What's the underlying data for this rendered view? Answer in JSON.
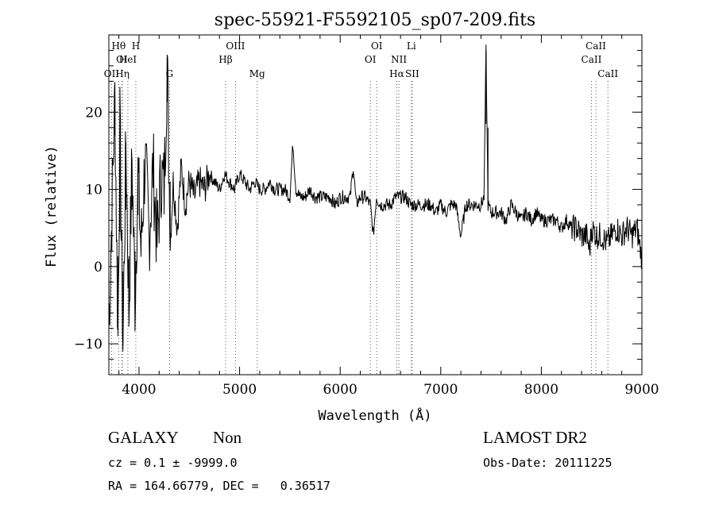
{
  "chart_data": {
    "type": "line",
    "title": "spec-55921-F5592105_sp07-209.fits",
    "xlabel": "Wavelength (Å)",
    "ylabel": "Flux (relative)",
    "xlim": [
      3700,
      9000
    ],
    "ylim": [
      -14,
      30
    ],
    "x_ticks": [
      4000,
      5000,
      6000,
      7000,
      8000,
      9000
    ],
    "y_ticks": [
      -10,
      0,
      10,
      20
    ],
    "grid": false,
    "series": [
      {
        "x": [
          3700,
          3760,
          3790,
          3810,
          3840,
          3870,
          3900,
          3930,
          3960,
          3990,
          4020,
          4060,
          4100,
          4140,
          4180,
          4220,
          4250,
          4280,
          4310,
          4340,
          4380,
          4420,
          4460,
          4500,
          4550,
          4600,
          4650,
          4700,
          4750,
          4800,
          4850,
          4900,
          4950,
          5000,
          5050,
          5100,
          5150,
          5200,
          5250,
          5300,
          5350,
          5400,
          5450,
          5500,
          5530,
          5560,
          5600,
          5650,
          5700,
          5750,
          5800,
          5850,
          5900,
          5950,
          6000,
          6050,
          6100,
          6130,
          6160,
          6200,
          6250,
          6300,
          6330,
          6360,
          6400,
          6450,
          6500,
          6550,
          6600,
          6650,
          6700,
          6750,
          6800,
          6850,
          6900,
          6950,
          7000,
          7050,
          7100,
          7150,
          7200,
          7250,
          7300,
          7350,
          7400,
          7430,
          7450,
          7470,
          7500,
          7550,
          7600,
          7650,
          7700,
          7750,
          7800,
          7850,
          7900,
          7950,
          8000,
          8050,
          8100,
          8150,
          8200,
          8250,
          8300,
          8350,
          8400,
          8450,
          8480,
          8500,
          8550,
          8600,
          8650,
          8700,
          8750,
          8800,
          8850,
          8900,
          8950,
          9000
        ],
        "y": [
          -8,
          22,
          -9,
          18,
          -10,
          16,
          -6,
          14,
          -4,
          12,
          2,
          14,
          4,
          13,
          3,
          12,
          10,
          27,
          3,
          11,
          5,
          13,
          8,
          11,
          9,
          11,
          10,
          12,
          11,
          10,
          12,
          11,
          10,
          12,
          11,
          10,
          11,
          10,
          10,
          11,
          10,
          10,
          10,
          9,
          16,
          10,
          9,
          9,
          10,
          9,
          9,
          9,
          9,
          8,
          9,
          9,
          9,
          13,
          8,
          9,
          9,
          8,
          4,
          9,
          8,
          8,
          8,
          9,
          9,
          9,
          8,
          8,
          8,
          8,
          8,
          7,
          8,
          7,
          8,
          8,
          4,
          8,
          8,
          8,
          8,
          9,
          28,
          8,
          7,
          7,
          7,
          6,
          8,
          7,
          6,
          7,
          6,
          7,
          6,
          6,
          6,
          6,
          5,
          6,
          5,
          5,
          4,
          4,
          2,
          5,
          4,
          4,
          3,
          4,
          5,
          4,
          5,
          4,
          5,
          1
        ]
      }
    ],
    "lines": [
      {
        "name": "Hθ",
        "x": 3798,
        "row": 1
      },
      {
        "name": "OI",
        "x": 3830,
        "row": 2
      },
      {
        "name": "HeI",
        "x": 3889,
        "row": 2
      },
      {
        "name": "OII",
        "x": 3727,
        "row": 3
      },
      {
        "name": "Hη",
        "x": 3835,
        "row": 3
      },
      {
        "name": "H",
        "x": 3968,
        "row": 1
      },
      {
        "name": "G",
        "x": 4304,
        "row": 3
      },
      {
        "name": "OIII",
        "x": 4959,
        "row": 1
      },
      {
        "name": "Hβ",
        "x": 4861,
        "row": 2
      },
      {
        "name": "Mg",
        "x": 5175,
        "row": 3
      },
      {
        "name": "OI",
        "x": 6364,
        "row": 1
      },
      {
        "name": "OI",
        "x": 6300,
        "row": 2
      },
      {
        "name": "Li",
        "x": 6708,
        "row": 1
      },
      {
        "name": "NII",
        "x": 6584,
        "row": 2
      },
      {
        "name": "Hα",
        "x": 6563,
        "row": 3
      },
      {
        "name": "SII",
        "x": 6716,
        "row": 3
      },
      {
        "name": "CaII",
        "x": 8542,
        "row": 1
      },
      {
        "name": "CaII",
        "x": 8498,
        "row": 2
      },
      {
        "name": "CaII",
        "x": 8662,
        "row": 3
      }
    ]
  },
  "footer": {
    "object_type": "GALAXY",
    "subclass": "Non",
    "survey": "LAMOST DR2",
    "cz": "cz = 0.1 ± -9999.0",
    "obs_date": "Obs-Date: 20111225",
    "radec": "RA = 164.66779, DEC =   0.36517"
  }
}
